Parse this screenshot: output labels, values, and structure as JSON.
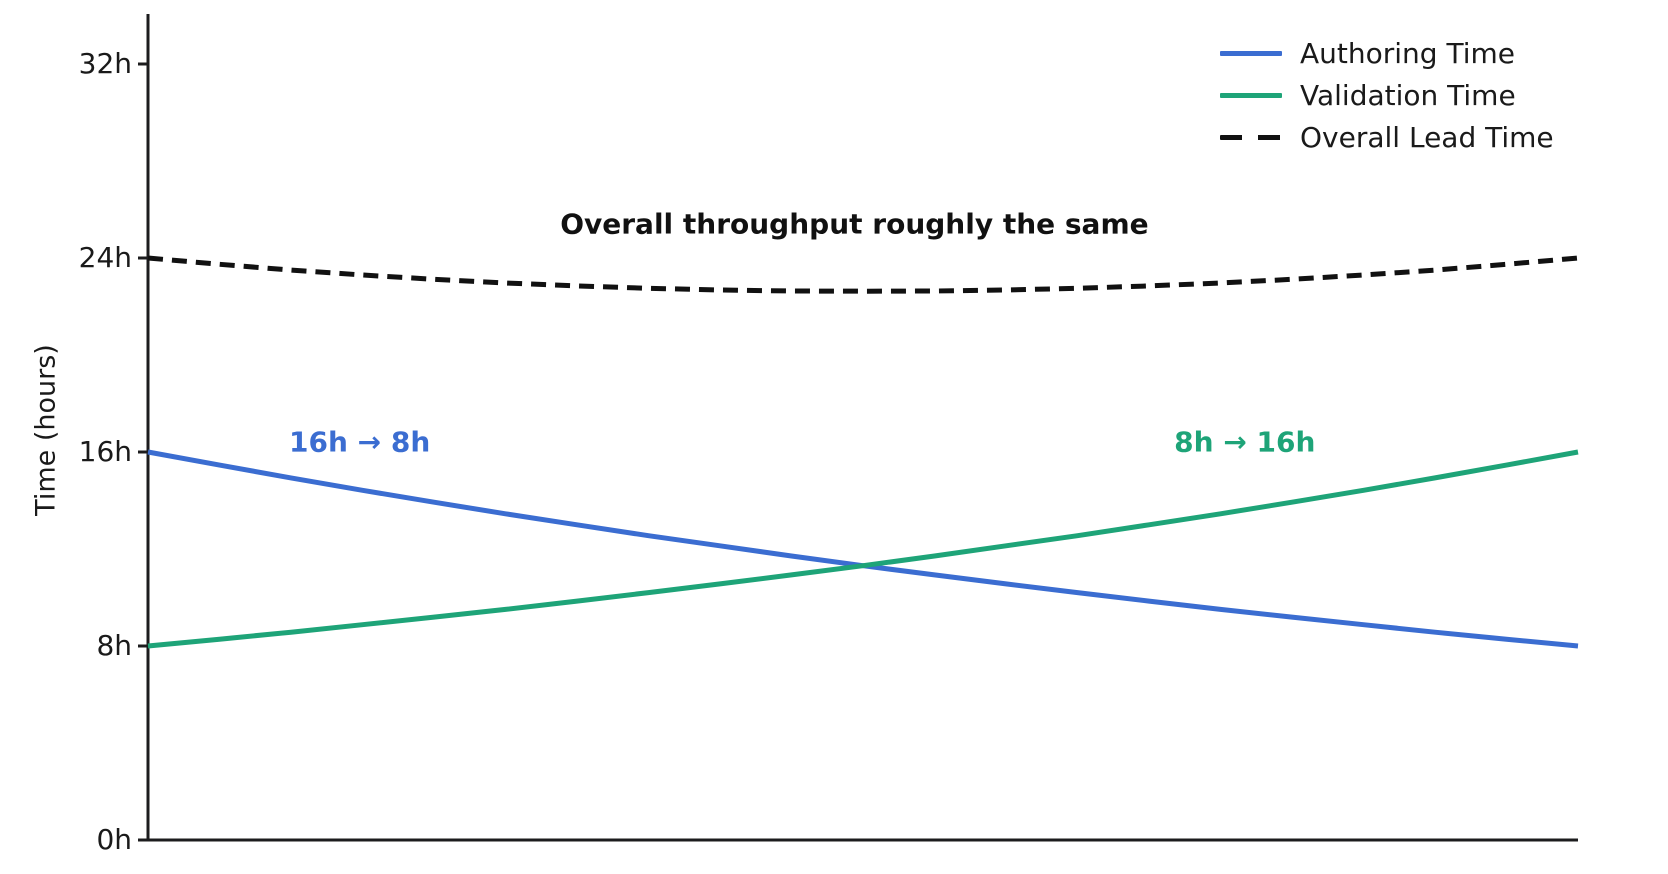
{
  "chart_data": {
    "type": "line",
    "title": "",
    "xlabel": "",
    "ylabel": "Time (hours)",
    "ylim": [
      0,
      34
    ],
    "grid": false,
    "legend_position": "upper-right",
    "yticks": [
      {
        "value": 0,
        "label": "0h"
      },
      {
        "value": 8,
        "label": "8h"
      },
      {
        "value": 16,
        "label": "16h"
      },
      {
        "value": 24,
        "label": "24h"
      },
      {
        "value": 32,
        "label": "32h"
      }
    ],
    "xticklabels": [],
    "x": [
      0,
      0.05,
      0.1,
      0.15,
      0.2,
      0.25,
      0.3,
      0.35,
      0.4,
      0.45,
      0.5,
      0.55,
      0.6,
      0.65,
      0.7,
      0.75,
      0.8,
      0.85,
      0.9,
      0.95,
      1
    ],
    "series": [
      {
        "name": "Authoring Time",
        "color": "#3b6dd1",
        "style": "solid",
        "values": [
          16,
          15.46,
          14.93,
          14.42,
          13.93,
          13.45,
          13.0,
          12.55,
          12.13,
          11.71,
          11.31,
          10.93,
          10.56,
          10.2,
          9.85,
          9.51,
          9.19,
          8.88,
          8.57,
          8.28,
          8
        ]
      },
      {
        "name": "Validation Time",
        "color": "#1ea478",
        "style": "solid",
        "values": [
          8,
          8.28,
          8.57,
          8.88,
          9.19,
          9.51,
          9.85,
          10.2,
          10.56,
          10.93,
          11.31,
          11.71,
          12.13,
          12.55,
          13.0,
          13.45,
          13.93,
          14.42,
          14.93,
          15.46,
          16
        ]
      },
      {
        "name": "Overall Lead Time",
        "color": "#111111",
        "style": "dashed",
        "values": [
          24,
          23.74,
          23.5,
          23.3,
          23.12,
          22.97,
          22.85,
          22.75,
          22.68,
          22.64,
          22.63,
          22.64,
          22.68,
          22.75,
          22.85,
          22.97,
          23.12,
          23.3,
          23.5,
          23.74,
          24
        ]
      }
    ],
    "annotations": [
      {
        "text": "Overall throughput roughly the same",
        "color": "#111111",
        "x": 0.494,
        "y": 25.4
      },
      {
        "text": "16h → 8h",
        "color": "#3b6dd1",
        "x": 0.148,
        "y": 16.4
      },
      {
        "text": "8h → 16h",
        "color": "#1ea478",
        "x": 0.767,
        "y": 16.4
      }
    ]
  }
}
